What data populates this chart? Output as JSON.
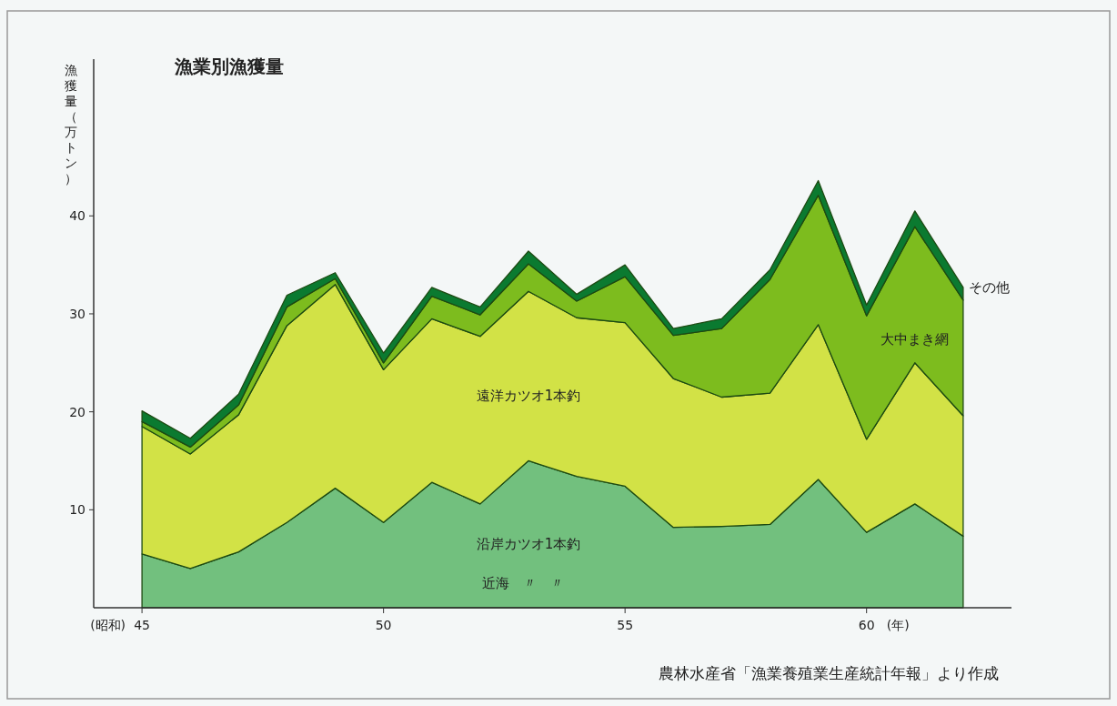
{
  "chart_data": {
    "type": "area",
    "stacked": true,
    "title": "漁業別漁獲量",
    "ylabel": "漁獲量（万トン）",
    "xlabel": "(年)",
    "x": [
      45,
      46,
      47,
      48,
      49,
      50,
      51,
      52,
      53,
      54,
      55,
      56,
      57,
      58,
      59,
      60,
      61,
      62
    ],
    "xlim": [
      44,
      63
    ],
    "xticks": [
      45,
      50,
      55,
      60
    ],
    "ylim": [
      0,
      56
    ],
    "yticks": [
      10,
      20,
      30,
      40
    ],
    "series": [
      {
        "name": "沿岸カツオ1本釣",
        "color": "#72c07e",
        "values": [
          5.5,
          4.0,
          5.7,
          8.7,
          12.2,
          8.7,
          12.8,
          10.6,
          15.0,
          13.4,
          12.4,
          8.2,
          8.3,
          8.5,
          13.1,
          7.7,
          10.6,
          7.3
        ]
      },
      {
        "name": "遠洋カツオ1本釣",
        "color": "#d2e246",
        "values": [
          13.0,
          11.7,
          14.0,
          20.1,
          20.8,
          15.6,
          16.7,
          17.1,
          17.3,
          16.2,
          16.7,
          15.2,
          13.2,
          13.4,
          15.8,
          9.5,
          14.4,
          12.3
        ]
      },
      {
        "name": "大中まき網",
        "color": "#7dbc1e",
        "values": [
          0.5,
          0.7,
          1.0,
          1.9,
          0.6,
          0.7,
          2.3,
          2.2,
          2.8,
          1.7,
          4.7,
          4.4,
          7.0,
          11.6,
          13.2,
          12.6,
          13.9,
          11.8
        ]
      },
      {
        "name": "その他",
        "color": "#0b7a30",
        "values": [
          1.1,
          0.9,
          1.1,
          1.2,
          0.6,
          1.0,
          0.9,
          0.8,
          1.3,
          0.7,
          1.2,
          0.7,
          1.0,
          1.0,
          1.5,
          1.1,
          1.6,
          1.3
        ]
      }
    ],
    "annotations": [
      "(昭和)",
      "近海　〃　〃",
      "農林水産省「漁業養殖業生産統計年報」より作成"
    ]
  }
}
